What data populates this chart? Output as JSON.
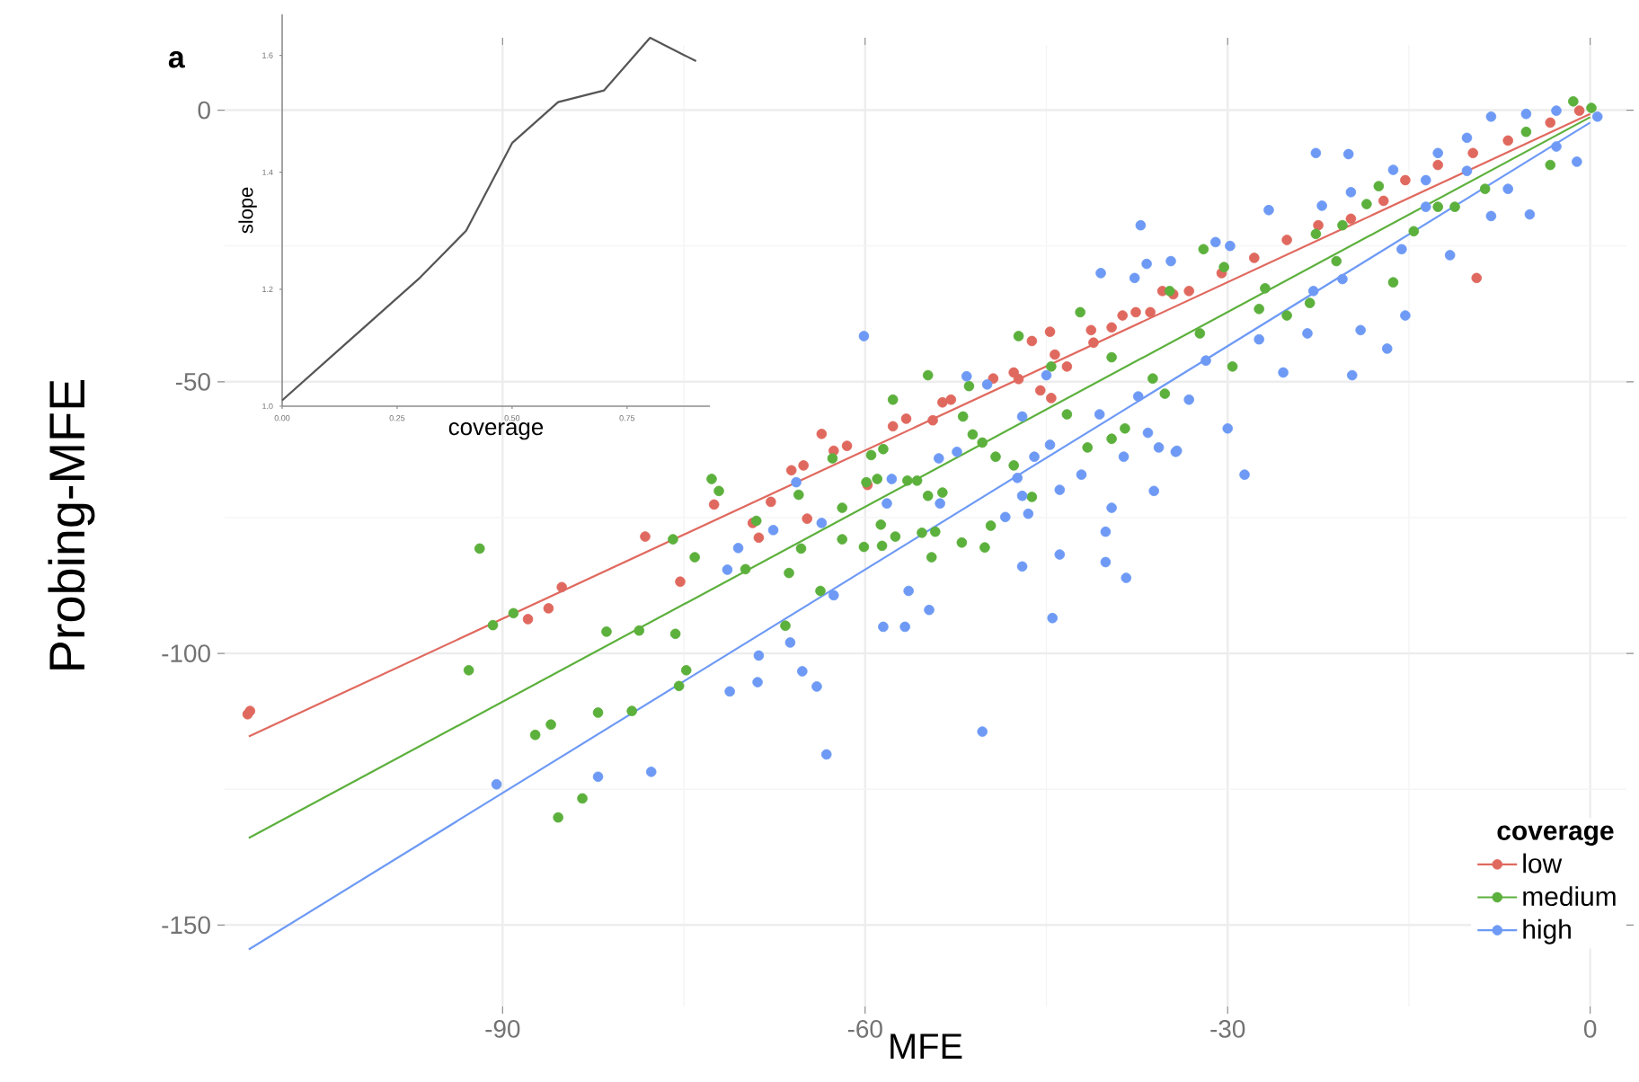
{
  "chart_data": [
    {
      "type": "scatter",
      "xlabel": "MFE",
      "ylabel": "Probing-MFE",
      "legend_title": "coverage",
      "legend": "bottom right",
      "grid": true,
      "marker": "circle",
      "xlim": [
        -113,
        3
      ],
      "ylim": [
        -165,
        12
      ],
      "xticks": [
        -90,
        -60,
        -30,
        0
      ],
      "yticks": [
        -150,
        -100,
        -50,
        0
      ],
      "annotations": [
        "a"
      ],
      "series": [
        {
          "name": "low",
          "type": "scatter",
          "color": "#e0695f",
          "x": [
            -111.1,
            -110.9,
            -85.1,
            -86.2,
            -87.9,
            -78.2,
            -75.3,
            -72.5,
            -69.3,
            -68.8,
            -67.8,
            -64.8,
            -66.1,
            -65.1,
            -63.6,
            -62.6,
            -61.5,
            -59.8,
            -57.7,
            -56.6,
            -54.4,
            -53.6,
            -52.9,
            -49.4,
            -47.7,
            -47.3,
            -46.2,
            -44.7,
            -45.5,
            -44.3,
            -43.3,
            -44.6,
            -41.3,
            -41.1,
            -39.6,
            -38.7,
            -37.6,
            -36.4,
            -35.4,
            -34.5,
            -33.2,
            -30.5,
            -27.8,
            -25.1,
            -22.5,
            -19.8,
            -17.1,
            -15.3,
            -12.6,
            -9.7,
            -6.8,
            -3.3,
            -0.9,
            -9.4
          ],
          "values": [
            -111.2,
            -110.6,
            -87.8,
            -91.7,
            -93.7,
            -78.5,
            -86.8,
            -72.6,
            -76.0,
            -78.7,
            -72.1,
            -75.2,
            -66.3,
            -65.4,
            -59.6,
            -62.7,
            -61.8,
            -69.0,
            -58.2,
            -56.8,
            -57.1,
            -53.8,
            -53.3,
            -49.4,
            -48.3,
            -49.5,
            -42.5,
            -40.8,
            -51.6,
            -45.0,
            -47.2,
            -53.0,
            -40.5,
            -42.8,
            -40.0,
            -37.8,
            -37.2,
            -37.2,
            -33.3,
            -33.9,
            -33.3,
            -30.0,
            -27.2,
            -23.9,
            -21.2,
            -20.0,
            -16.7,
            -12.9,
            -10.1,
            -7.9,
            -5.6,
            -2.3,
            -0.1,
            -30.9
          ]
        },
        {
          "name": "medium",
          "type": "scatter",
          "color": "#5cb03c",
          "x": [
            -91.9,
            -92.8,
            -90.8,
            -89.1,
            -87.3,
            -86.0,
            -85.4,
            -83.4,
            -82.1,
            -81.4,
            -78.7,
            -79.3,
            -75.9,
            -75.7,
            -74.8,
            -75.4,
            -74.1,
            -72.7,
            -72.1,
            -69.9,
            -69.0,
            -65.5,
            -66.3,
            -66.6,
            -63.7,
            -65.3,
            -62.7,
            -61.9,
            -61.9,
            -60.1,
            -59.9,
            -59.5,
            -59.0,
            -58.7,
            -58.6,
            -58.5,
            -57.7,
            -57.5,
            -56.5,
            -55.7,
            -55.3,
            -54.8,
            -54.8,
            -54.5,
            -54.2,
            -53.6,
            -52.0,
            -51.9,
            -51.4,
            -51.1,
            -50.3,
            -50.1,
            -49.6,
            -49.2,
            -47.7,
            -47.3,
            -46.2,
            -44.6,
            -43.3,
            -42.2,
            -41.6,
            -39.6,
            -39.6,
            -38.5,
            -36.2,
            -35.2,
            -34.8,
            -32.3,
            -32.0,
            -30.3,
            -29.6,
            -27.4,
            -26.9,
            -25.1,
            -23.2,
            -22.7,
            -21.0,
            -20.5,
            -18.5,
            -17.5,
            -16.3,
            -14.6,
            -12.6,
            -11.2,
            -8.7,
            -5.3,
            -3.3,
            -1.4,
            0.1
          ],
          "values": [
            -80.7,
            -103.1,
            -94.8,
            -92.6,
            -115.0,
            -113.1,
            -130.2,
            -126.7,
            -110.9,
            -96.0,
            -95.8,
            -110.6,
            -79.0,
            -96.4,
            -103.1,
            -106.0,
            -82.3,
            -67.9,
            -70.1,
            -84.5,
            -75.6,
            -70.8,
            -85.2,
            -94.9,
            -88.5,
            -80.7,
            -64.1,
            -73.2,
            -79.0,
            -80.4,
            -68.5,
            -63.5,
            -67.9,
            -76.3,
            -80.2,
            -62.4,
            -53.3,
            -78.5,
            -68.2,
            -68.2,
            -77.8,
            -48.8,
            -71.0,
            -82.3,
            -77.6,
            -70.4,
            -79.6,
            -56.4,
            -50.8,
            -59.7,
            -61.2,
            -80.5,
            -76.5,
            -63.8,
            -65.4,
            -41.6,
            -71.2,
            -47.2,
            -56.0,
            -37.2,
            -62.1,
            -45.5,
            -60.5,
            -58.6,
            -49.4,
            -52.2,
            -33.3,
            -41.1,
            -25.6,
            -28.9,
            -47.2,
            -36.6,
            -32.8,
            -37.8,
            -35.5,
            -22.8,
            -27.8,
            -21.2,
            -17.3,
            -14.0,
            -31.7,
            -22.3,
            -17.8,
            -17.8,
            -14.5,
            -4.0,
            -10.1,
            1.6,
            0.4
          ]
        },
        {
          "name": "high",
          "type": "scatter",
          "color": "#6e9af5",
          "x": [
            -90.5,
            -82.1,
            -77.7,
            -70.5,
            -71.4,
            -71.2,
            -68.9,
            -68.8,
            -67.6,
            -66.2,
            -65.2,
            -64.0,
            -63.2,
            -62.6,
            -63.6,
            -65.7,
            -60.1,
            -58.2,
            -58.5,
            -57.8,
            -56.7,
            -56.4,
            -54.7,
            -53.9,
            -53.8,
            -52.4,
            -51.6,
            -50.3,
            -49.9,
            -48.4,
            -47.4,
            -47.0,
            -47.0,
            -47.0,
            -46.5,
            -46.0,
            -45.0,
            -44.7,
            -44.5,
            -43.9,
            -43.9,
            -42.1,
            -40.6,
            -40.5,
            -40.1,
            -40.1,
            -39.6,
            -38.6,
            -38.4,
            -37.7,
            -37.4,
            -37.2,
            -36.7,
            -36.6,
            -36.1,
            -35.7,
            -34.7,
            -34.3,
            -34.2,
            -33.2,
            -31.8,
            -31.0,
            -30.0,
            -29.8,
            -28.6,
            -27.4,
            -26.6,
            -25.4,
            -23.4,
            -22.9,
            -22.7,
            -22.2,
            -20.5,
            -20.0,
            -19.8,
            -19.7,
            -19.0,
            -16.8,
            -16.3,
            -15.6,
            -15.3,
            -13.6,
            -13.6,
            -12.6,
            -11.6,
            -10.2,
            -10.2,
            -8.2,
            -8.2,
            -6.8,
            -5.3,
            -5.0,
            -2.8,
            -2.8,
            -1.1,
            0.6
          ],
          "values": [
            -124.1,
            -122.7,
            -121.8,
            -80.6,
            -84.6,
            -107.0,
            -105.3,
            -100.4,
            -77.3,
            -98.0,
            -103.3,
            -106.1,
            -118.6,
            -89.3,
            -76.0,
            -68.5,
            -41.6,
            -72.4,
            -95.1,
            -67.9,
            -95.1,
            -88.5,
            -92.0,
            -64.1,
            -72.4,
            -62.9,
            -49.0,
            -114.4,
            -50.5,
            -74.9,
            -67.7,
            -71.0,
            -56.4,
            -84.0,
            -74.3,
            -63.8,
            -48.8,
            -61.6,
            -93.5,
            -69.9,
            -81.8,
            -67.1,
            -56.0,
            -30.0,
            -77.6,
            -83.2,
            -73.2,
            -63.8,
            -86.1,
            -30.9,
            -52.7,
            -21.2,
            -28.3,
            -59.4,
            -70.1,
            -62.1,
            -27.8,
            -62.9,
            -62.7,
            -53.3,
            -46.1,
            -24.3,
            -58.6,
            -25.0,
            -67.1,
            -42.2,
            -18.4,
            -48.3,
            -41.1,
            -33.3,
            -7.9,
            -17.6,
            -31.1,
            -8.1,
            -15.1,
            -48.8,
            -40.5,
            -43.9,
            -11.0,
            -25.6,
            -37.8,
            -12.9,
            -17.8,
            -7.9,
            -26.7,
            -5.1,
            -11.2,
            -1.2,
            -19.5,
            -14.5,
            -0.7,
            -19.2,
            -0.1,
            -6.7,
            -9.5,
            -1.2
          ]
        },
        {
          "type": "line",
          "marker": "none",
          "color": "#e0695f",
          "x": [
            -111,
            0
          ],
          "values": [
            -115.3,
            -0.7
          ]
        },
        {
          "type": "line",
          "marker": "none",
          "color": "#5cb03c",
          "x": [
            -111,
            0
          ],
          "values": [
            -134.0,
            -1.3
          ]
        },
        {
          "type": "line",
          "marker": "none",
          "color": "#6e9af5",
          "x": [
            -111,
            0
          ],
          "values": [
            -154.5,
            -2.3
          ]
        }
      ]
    },
    {
      "type": "line",
      "xlabel": "coverage",
      "ylabel": "slope",
      "xlim": [
        0,
        0.93
      ],
      "ylim": [
        1.0,
        1.67
      ],
      "xticks": [
        {
          "value": 0,
          "label": "0.00"
        },
        {
          "value": 0.25,
          "label": "0.25"
        },
        {
          "value": 0.5,
          "label": "0.50"
        },
        {
          "value": 0.75,
          "label": "0.75"
        }
      ],
      "yticks": [
        {
          "value": 1.0,
          "label": "1.0"
        },
        {
          "value": 1.2,
          "label": "1.2"
        },
        {
          "value": 1.4,
          "label": "1.4"
        },
        {
          "value": 1.6,
          "label": "1.6"
        }
      ],
      "x": [
        0,
        0.1,
        0.2,
        0.3,
        0.4,
        0.5,
        0.6,
        0.7,
        0.8,
        0.9
      ],
      "series": [
        {
          "color": "#555555",
          "values": [
            1.01,
            1.08,
            1.15,
            1.22,
            1.3,
            1.45,
            1.52,
            1.54,
            1.63,
            1.59
          ]
        }
      ]
    }
  ]
}
